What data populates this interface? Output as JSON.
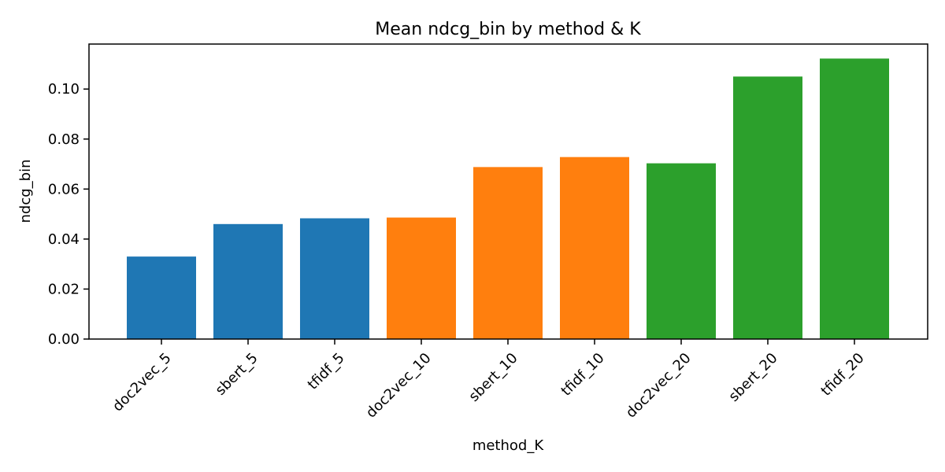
{
  "chart_data": {
    "type": "bar",
    "title": "Mean ndcg_bin by method & K",
    "xlabel": "method_K",
    "ylabel": "ndcg_bin",
    "categories": [
      "doc2vec_5",
      "sbert_5",
      "tfidf_5",
      "doc2vec_10",
      "sbert_10",
      "tfidf_10",
      "doc2vec_20",
      "sbert_20",
      "tfidf_20"
    ],
    "values": [
      0.033,
      0.046,
      0.0483,
      0.0486,
      0.0688,
      0.0728,
      0.0703,
      0.105,
      0.1122
    ],
    "bar_colors": [
      "#1f77b4",
      "#1f77b4",
      "#1f77b4",
      "#ff7f0e",
      "#ff7f0e",
      "#ff7f0e",
      "#2ca02c",
      "#2ca02c",
      "#2ca02c"
    ],
    "ylim": [
      0,
      0.118
    ],
    "yticks": [
      0.0,
      0.02,
      0.04,
      0.06,
      0.08,
      0.1
    ],
    "ytick_labels": [
      "0.00",
      "0.02",
      "0.04",
      "0.06",
      "0.08",
      "0.10"
    ],
    "grid": false,
    "legend": "none"
  }
}
